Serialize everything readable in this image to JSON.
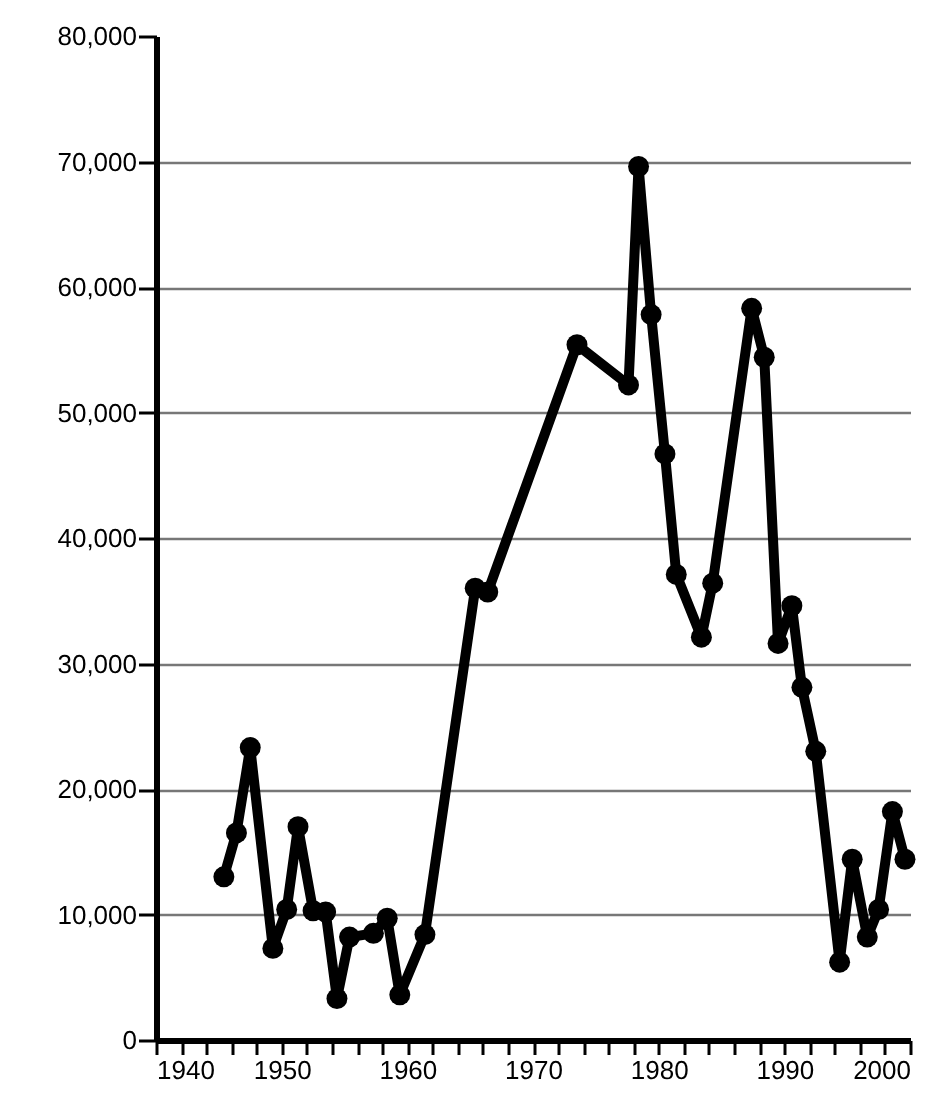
{
  "chart_data": {
    "type": "line",
    "x": [
      1945.4,
      1946.4,
      1947.5,
      1949.3,
      1950.4,
      1951.3,
      1952.5,
      1953.5,
      1954.4,
      1955.4,
      1957.3,
      1958.4,
      1959.4,
      1961.4,
      1965.4,
      1966.4,
      1973.5,
      1977.6,
      1978.4,
      1979.4,
      1980.5,
      1981.4,
      1983.4,
      1984.3,
      1987.4,
      1988.4,
      1989.5,
      1990.6,
      1991.4,
      1992.5,
      1994.4,
      1995.4,
      1996.6,
      1997.5,
      1998.6,
      1999.6
    ],
    "series": [
      {
        "color": "#000000",
        "values": [
          13000,
          16500,
          23300,
          7300,
          10400,
          17000,
          10300,
          10200,
          3300,
          8200,
          8500,
          9700,
          3600,
          8400,
          36000,
          35700,
          55400,
          52200,
          69600,
          57800,
          46700,
          37100,
          32100,
          36400,
          58300,
          54400,
          31600,
          34600,
          28100,
          23000,
          6200,
          14400,
          8200,
          10400,
          18200,
          14400
        ]
      }
    ],
    "xlim": [
      1940,
      2000
    ],
    "xticks": [
      1940,
      {
        "value": 1942,
        "label": null
      },
      {
        "value": 1944,
        "label": null
      },
      {
        "value": 1946,
        "label": null
      },
      {
        "value": 1948,
        "label": null
      },
      1950,
      {
        "value": 1952,
        "label": null
      },
      {
        "value": 1954,
        "label": null
      },
      {
        "value": 1956,
        "label": null
      },
      {
        "value": 1958,
        "label": null
      },
      1960,
      {
        "value": 1962,
        "label": null
      },
      {
        "value": 1964,
        "label": null
      },
      {
        "value": 1966,
        "label": null
      },
      {
        "value": 1968,
        "label": null
      },
      1970,
      {
        "value": 1972,
        "label": null
      },
      {
        "value": 1974,
        "label": null
      },
      {
        "value": 1976,
        "label": null
      },
      {
        "value": 1978,
        "label": null
      },
      1980,
      {
        "value": 1982,
        "label": null
      },
      {
        "value": 1984,
        "label": null
      },
      {
        "value": 1986,
        "label": null
      },
      {
        "value": 1988,
        "label": null
      },
      1990,
      {
        "value": 1992,
        "label": null
      },
      {
        "value": 1994,
        "label": null
      },
      {
        "value": 1996,
        "label": null
      },
      {
        "value": 1998,
        "label": null
      },
      2000
    ],
    "ylim": [
      0,
      80000
    ],
    "yticks": [
      {
        "value": 0,
        "label": "0"
      },
      {
        "value": 10000,
        "label": "10,000"
      },
      {
        "value": 20000,
        "label": "20,000"
      },
      {
        "value": 30000,
        "label": "30,000"
      },
      {
        "value": 40000,
        "label": "40,000"
      },
      {
        "value": 50000,
        "label": "50,000"
      },
      {
        "value": 60000,
        "label": "60,000"
      },
      {
        "value": 70000,
        "label": "70,000"
      },
      {
        "value": 80000,
        "label": "80,000"
      }
    ],
    "grid": "y",
    "marker": "circle",
    "line_style": "solid"
  }
}
